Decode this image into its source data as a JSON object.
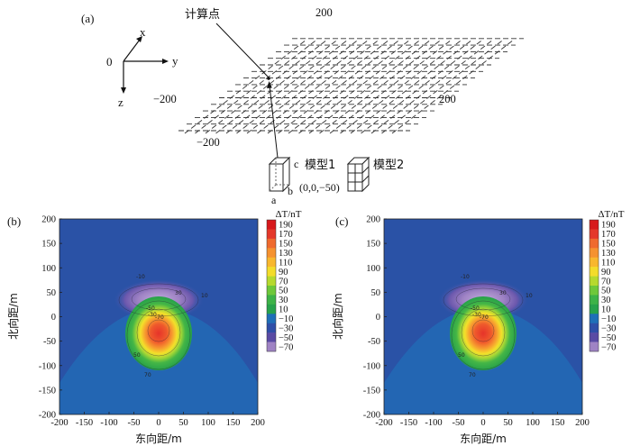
{
  "panel_a": {
    "label": "(a)",
    "calc_point_label": "计算点",
    "axis_origin": "0",
    "axis_x": "x",
    "axis_y": "y",
    "axis_z": "z",
    "grid_labels": {
      "top": "200",
      "left": "−200",
      "right": "200",
      "bottom": "−200"
    },
    "model_dims": {
      "a": "a",
      "b": "b",
      "c": "c"
    },
    "model_position": "(0,0,−50)",
    "model1_label": "模型1",
    "model2_label": "模型2"
  },
  "panels": [
    {
      "label": "(b)",
      "xlabel": "东向距/m",
      "ylabel": "北向距/m"
    },
    {
      "label": "(c)",
      "xlabel": "东向距/m",
      "ylabel": "北向距/m"
    }
  ],
  "colorbar": {
    "unit": "ΔT/nT",
    "ticks": [
      "190",
      "170",
      "150",
      "130",
      "110",
      "90",
      "70",
      "50",
      "30",
      "10",
      "−10",
      "−30",
      "−50",
      "−70"
    ],
    "colors": [
      "#d7191c",
      "#e4382a",
      "#ef6a2e",
      "#f59230",
      "#f8b72e",
      "#f3dc2a",
      "#b6d92e",
      "#6ec83a",
      "#3db348",
      "#27a24c",
      "#1f6fb8",
      "#2f4fa8",
      "#5a4ba4",
      "#9f83c4"
    ]
  },
  "contour_labels": [
    "-10",
    "30",
    "10",
    "-50",
    "-30",
    "-70",
    "-10",
    "30",
    "10",
    "-10",
    "50",
    "70"
  ],
  "chart_data": [
    {
      "type": "heatmap",
      "title": "",
      "xlabel": "东向距/m",
      "ylabel": "北向距/m",
      "xlim": [
        -200,
        200
      ],
      "ylim": [
        -200,
        200
      ],
      "xticks": [
        -200,
        -150,
        -100,
        -50,
        0,
        50,
        100,
        150,
        200
      ],
      "yticks": [
        200,
        150,
        100,
        50,
        0,
        -50,
        -100,
        -150,
        -200
      ],
      "colorbar_range": [
        -70,
        190
      ],
      "features": [
        {
          "kind": "positive_peak",
          "x": 0,
          "y": -30,
          "value": 190
        },
        {
          "kind": "negative_trough",
          "x": 0,
          "y": 30,
          "value": -70
        }
      ]
    },
    {
      "type": "heatmap",
      "title": "",
      "xlabel": "东向距/m",
      "ylabel": "北向距/m",
      "xlim": [
        -200,
        200
      ],
      "ylim": [
        -200,
        200
      ],
      "xticks": [
        -200,
        -150,
        -100,
        -50,
        0,
        50,
        100,
        150,
        200
      ],
      "yticks": [
        200,
        150,
        100,
        50,
        0,
        -50,
        -100,
        -150,
        -200
      ],
      "colorbar_range": [
        -70,
        190
      ],
      "features": [
        {
          "kind": "positive_peak",
          "x": 0,
          "y": -30,
          "value": 190
        },
        {
          "kind": "negative_trough",
          "x": 0,
          "y": 30,
          "value": -70
        }
      ]
    }
  ]
}
